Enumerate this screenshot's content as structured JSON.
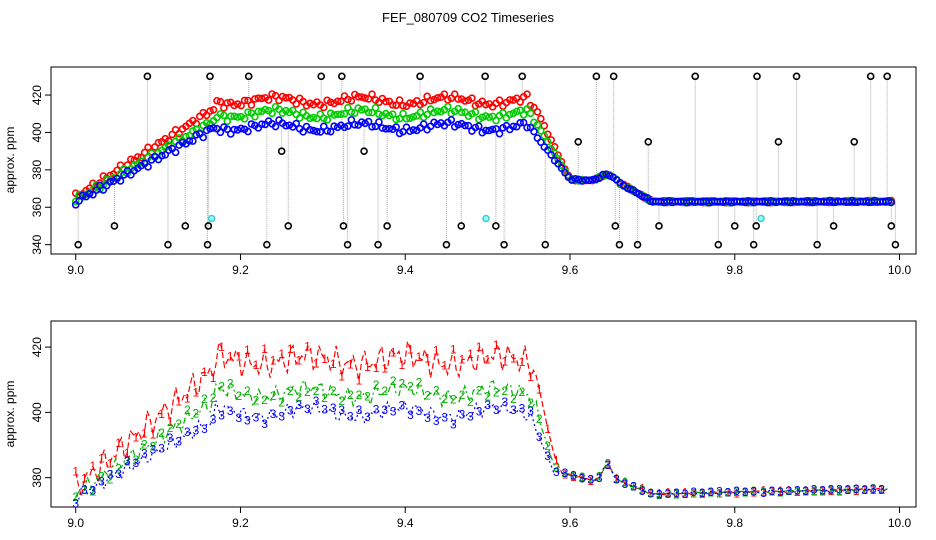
{
  "title": "FEF_080709  CO2 Timeseries",
  "chart_data": [
    {
      "type": "scatter",
      "ylabel": "approx. ppm",
      "xlim": [
        8.97,
        10.02
      ],
      "ylim": [
        335,
        435
      ],
      "xticks": [
        "9.0",
        "9.2",
        "9.4",
        "9.6",
        "9.8",
        "10.0"
      ],
      "yticks": [
        "340",
        "360",
        "380",
        "400",
        "420"
      ],
      "grid": false,
      "segments": [
        {
          "start": 9.0,
          "end": 9.665,
          "n": 160
        },
        {
          "start": 9.67,
          "end": 9.99,
          "n": 95
        }
      ],
      "outliers": [
        {
          "x": 9.003,
          "y": 340
        },
        {
          "x": 9.047,
          "y": 350
        },
        {
          "x": 9.087,
          "y": 430
        },
        {
          "x": 9.112,
          "y": 340
        },
        {
          "x": 9.133,
          "y": 350
        },
        {
          "x": 9.163,
          "y": 430
        },
        {
          "x": 9.16,
          "y": 340
        },
        {
          "x": 9.161,
          "y": 350
        },
        {
          "x": 9.21,
          "y": 430
        },
        {
          "x": 9.232,
          "y": 340
        },
        {
          "x": 9.258,
          "y": 350
        },
        {
          "x": 9.298,
          "y": 430
        },
        {
          "x": 9.323,
          "y": 430
        },
        {
          "x": 9.325,
          "y": 350
        },
        {
          "x": 9.33,
          "y": 340
        },
        {
          "x": 9.367,
          "y": 340
        },
        {
          "x": 9.378,
          "y": 350
        },
        {
          "x": 9.418,
          "y": 430
        },
        {
          "x": 9.45,
          "y": 340
        },
        {
          "x": 9.468,
          "y": 350
        },
        {
          "x": 9.497,
          "y": 430
        },
        {
          "x": 9.51,
          "y": 350
        },
        {
          "x": 9.52,
          "y": 340
        },
        {
          "x": 9.542,
          "y": 430
        },
        {
          "x": 9.57,
          "y": 340
        },
        {
          "x": 9.632,
          "y": 430
        },
        {
          "x": 9.653,
          "y": 430
        },
        {
          "x": 9.655,
          "y": 350
        },
        {
          "x": 9.66,
          "y": 340
        },
        {
          "x": 9.682,
          "y": 340
        },
        {
          "x": 9.708,
          "y": 350
        },
        {
          "x": 9.752,
          "y": 430
        },
        {
          "x": 9.78,
          "y": 340
        },
        {
          "x": 9.8,
          "y": 350
        },
        {
          "x": 9.823,
          "y": 340
        },
        {
          "x": 9.826,
          "y": 350
        },
        {
          "x": 9.827,
          "y": 430
        },
        {
          "x": 9.875,
          "y": 430
        },
        {
          "x": 9.9,
          "y": 340
        },
        {
          "x": 9.92,
          "y": 350
        },
        {
          "x": 9.965,
          "y": 430
        },
        {
          "x": 9.985,
          "y": 430
        },
        {
          "x": 9.99,
          "y": 350
        },
        {
          "x": 9.995,
          "y": 340
        },
        {
          "x": 9.25,
          "y": 390
        },
        {
          "x": 9.35,
          "y": 390
        },
        {
          "x": 9.61,
          "y": 395
        },
        {
          "x": 9.695,
          "y": 395
        },
        {
          "x": 9.853,
          "y": 395
        },
        {
          "x": 9.945,
          "y": 395
        }
      ],
      "cyan_points": [
        {
          "x": 9.165,
          "y": 354
        },
        {
          "x": 9.498,
          "y": 354
        },
        {
          "x": 9.832,
          "y": 354
        }
      ],
      "series": [
        {
          "name": "1",
          "color": "#ff0000",
          "offset_early": 8,
          "offset_plateau": 14
        },
        {
          "name": "2",
          "color": "#00cc00",
          "offset_early": 3,
          "offset_plateau": 7
        },
        {
          "name": "3",
          "color": "#0000ff",
          "offset_early": 0,
          "offset_plateau": 0
        }
      ],
      "outlier_color": "#000000",
      "connector_color": "#aaaaaa"
    },
    {
      "type": "line",
      "ylabel": "approx. ppm",
      "xlim": [
        8.97,
        10.02
      ],
      "ylim": [
        371,
        428
      ],
      "xticks": [
        "9.0",
        "9.2",
        "9.4",
        "9.6",
        "9.8",
        "10.0"
      ],
      "yticks": [
        "380",
        "400",
        "420"
      ],
      "grid": false,
      "segments": [
        {
          "start": 9.0,
          "end": 9.83,
          "n": 240
        },
        {
          "start": 9.835,
          "end": 9.985,
          "n": 45
        }
      ],
      "series": [
        {
          "name": "1",
          "color": "#ff0000",
          "label": "1",
          "offset_plateau": 16,
          "dash": "6,3"
        },
        {
          "name": "2",
          "color": "#00b000",
          "label": "2",
          "offset_plateau": 6,
          "dash": "6,3,2,3"
        },
        {
          "name": "3",
          "color": "#0000ff",
          "label": "3",
          "offset_plateau": 0,
          "dash": "2,3"
        }
      ]
    }
  ]
}
